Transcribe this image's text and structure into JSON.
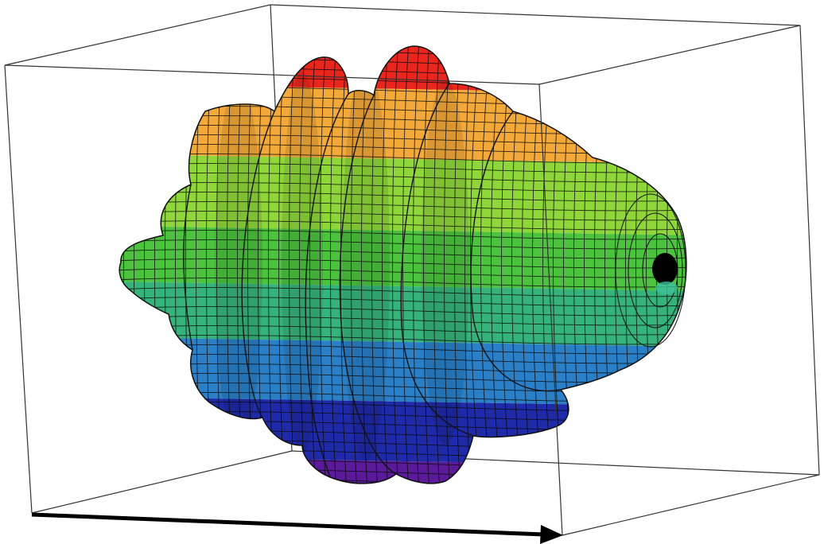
{
  "figure": {
    "kind": "3d-surface-plot",
    "subject": "radiation-pattern-surface",
    "bounding_box_visible": true,
    "axis_arrow_visible": true,
    "colormap": "rainbow",
    "colormap_bands": [
      "#5a1a9a",
      "#1f2aa8",
      "#2a7fc7",
      "#36b37a",
      "#4cc23f",
      "#8fd63a",
      "#f2a93a",
      "#e8261e"
    ],
    "band_names": [
      "violet",
      "blue",
      "light-blue",
      "teal-green",
      "green",
      "yellow-green",
      "orange",
      "red"
    ],
    "mesh_line_color": "#0a0a0a",
    "box_line_color": "#333333",
    "axis_arrow_color": "#000000",
    "opening_color": "#000000"
  }
}
